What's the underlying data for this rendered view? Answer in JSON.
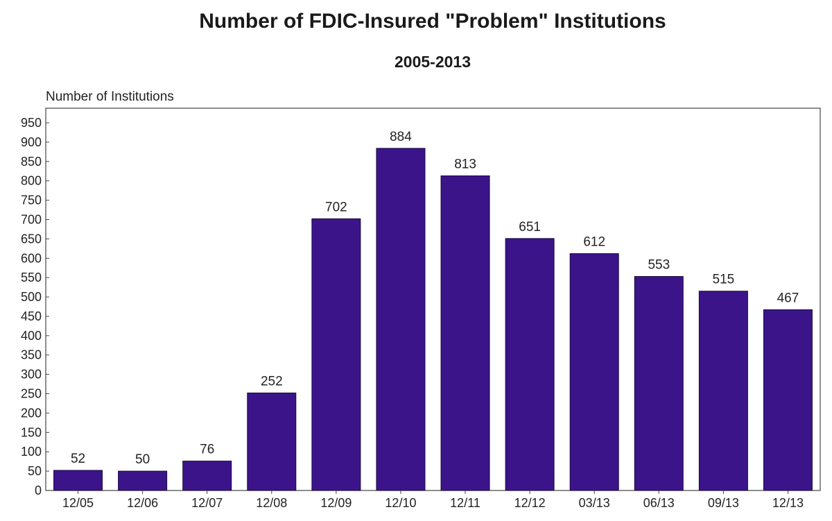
{
  "chart_data": {
    "type": "bar",
    "title": "Number of FDIC-Insured \"Problem\" Institutions",
    "subtitle": "2005-2013",
    "ylabel": "Number of Institutions",
    "xlabel": "",
    "categories": [
      "12/05",
      "12/06",
      "12/07",
      "12/08",
      "12/09",
      "12/10",
      "12/11",
      "12/12",
      "03/13",
      "06/13",
      "09/13",
      "12/13"
    ],
    "values": [
      52,
      50,
      76,
      252,
      702,
      884,
      813,
      651,
      612,
      553,
      515,
      467
    ],
    "data_labels": [
      "52",
      "50",
      "76",
      "252",
      "702",
      "884",
      "813",
      "651",
      "612",
      "553",
      "515",
      "467"
    ],
    "ylim": [
      0,
      950
    ],
    "yticks": [
      0,
      50,
      100,
      150,
      200,
      250,
      300,
      350,
      400,
      450,
      500,
      550,
      600,
      650,
      700,
      750,
      800,
      850,
      900,
      950
    ],
    "grid": false,
    "bar_color": "#3b148a"
  }
}
